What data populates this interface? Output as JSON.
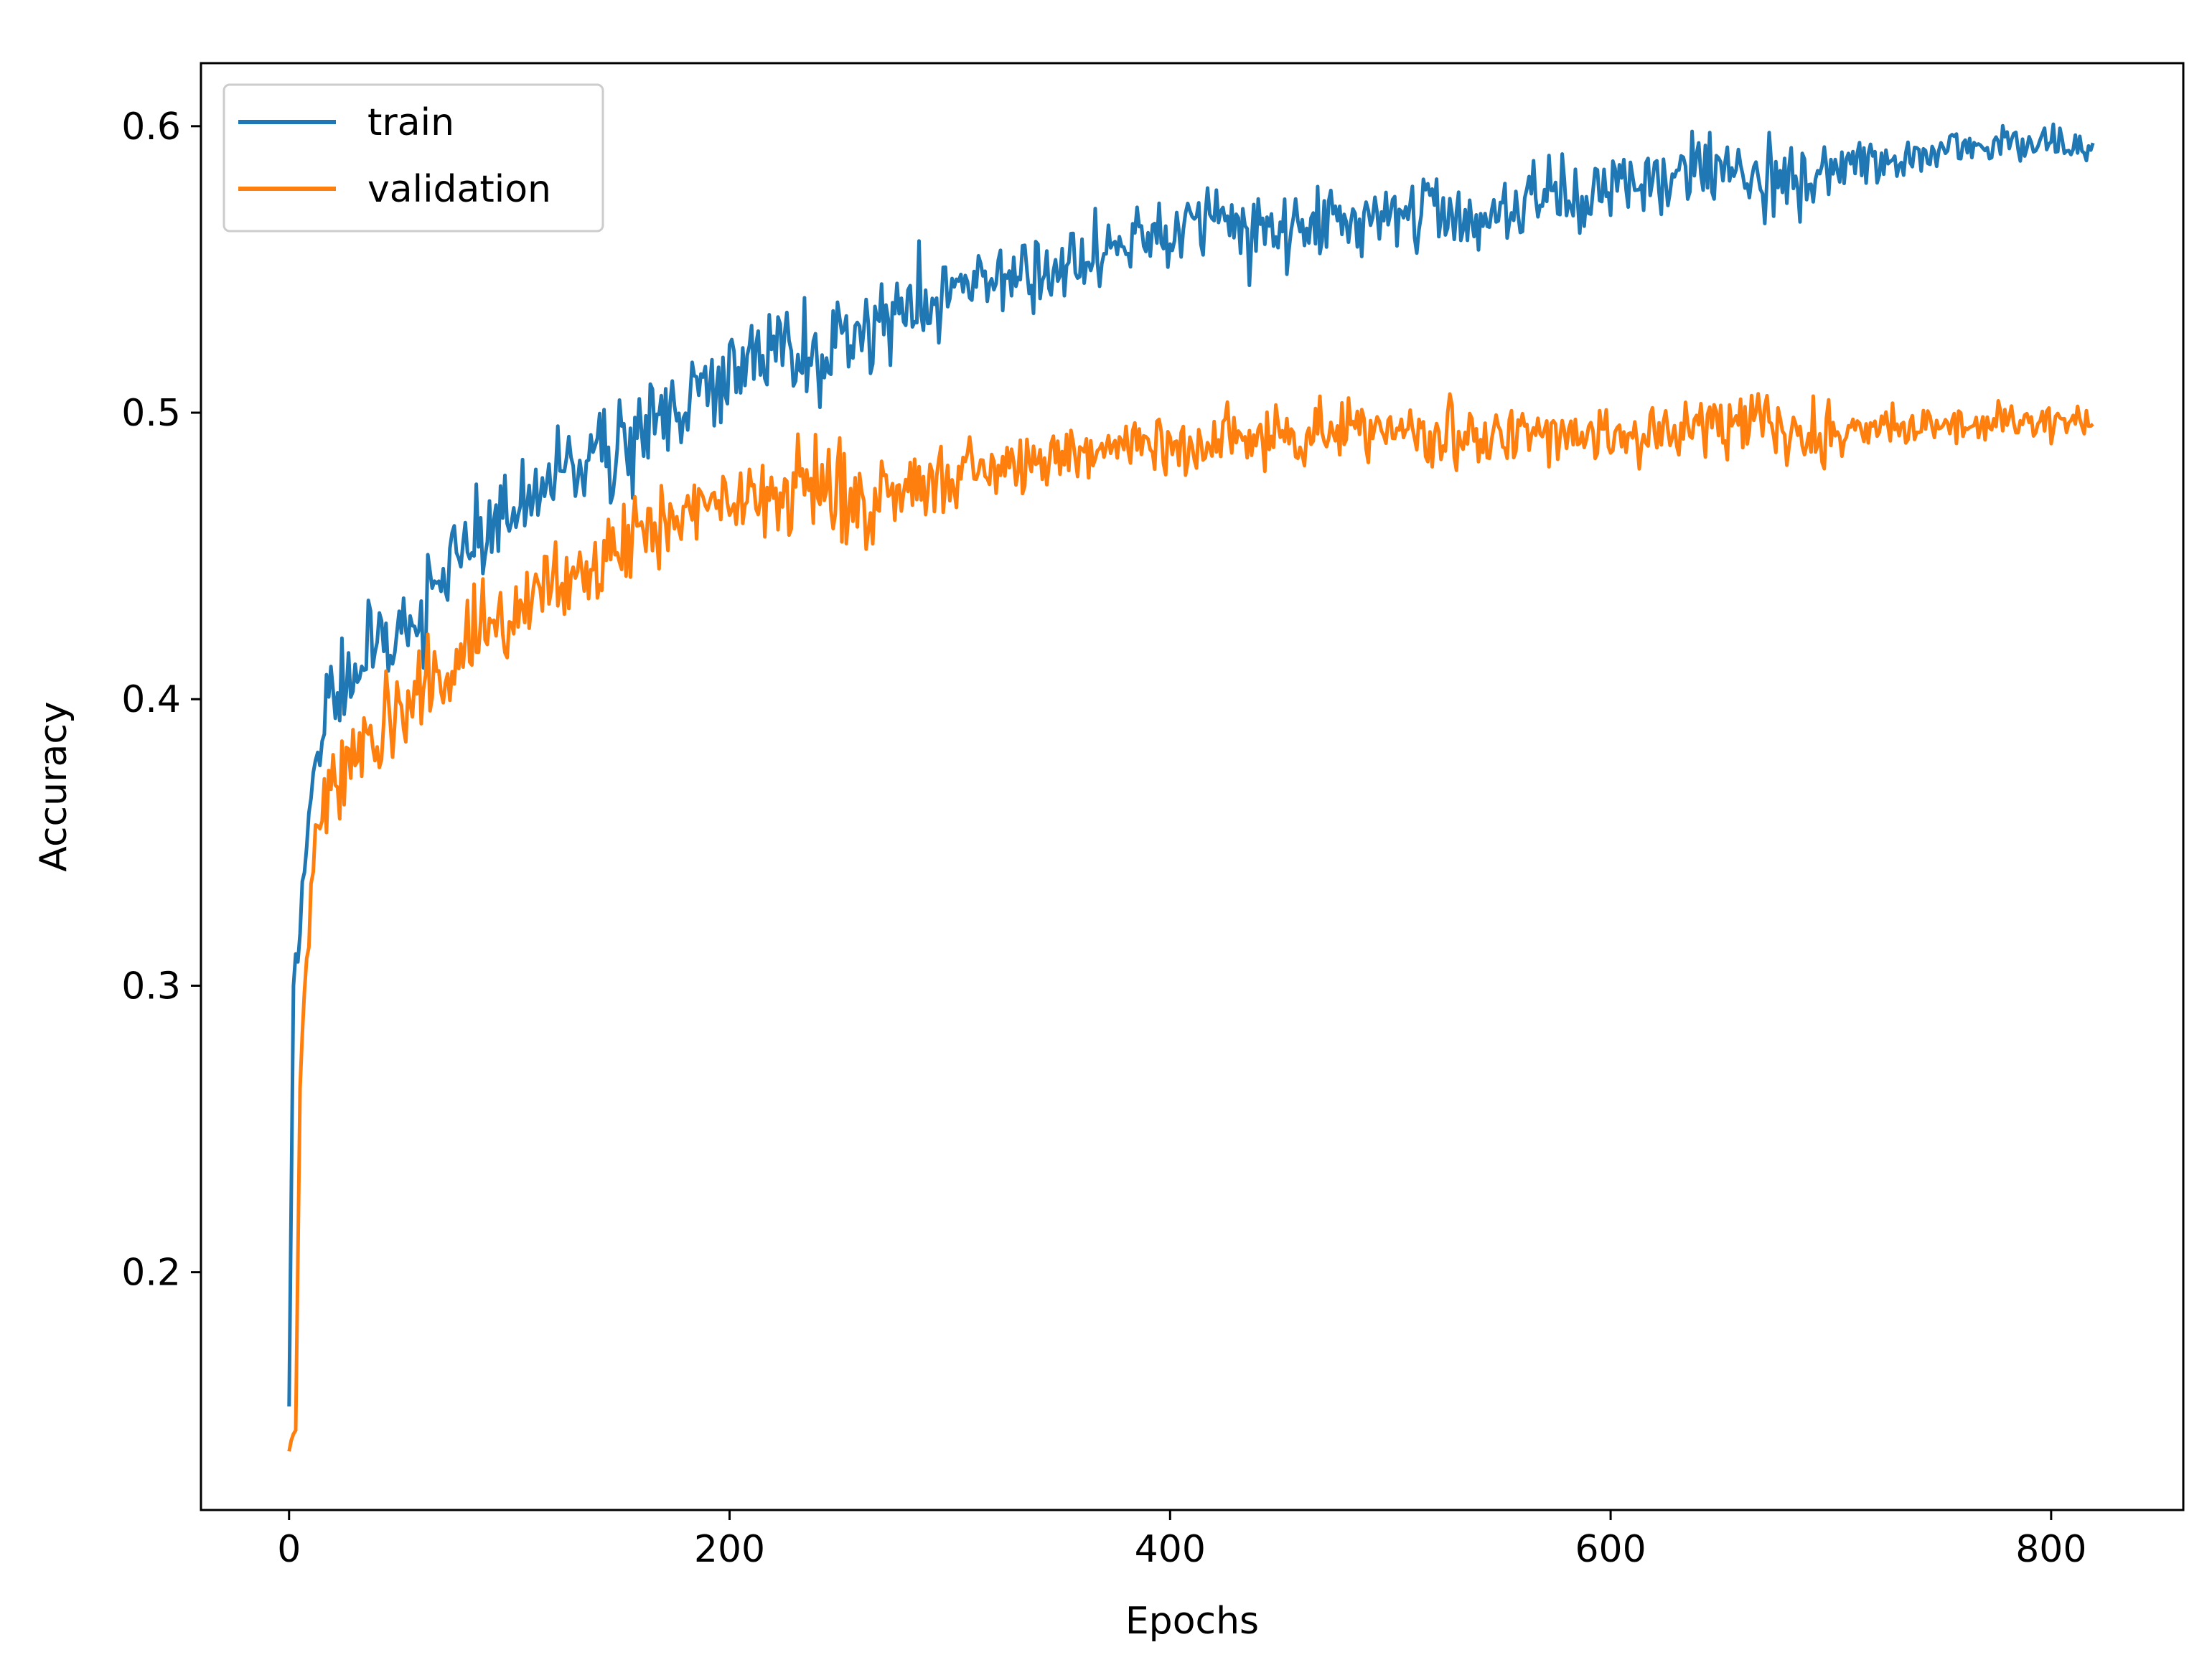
{
  "chart_data": {
    "type": "line",
    "title": "",
    "xlabel": "Epochs",
    "ylabel": "Accuracy",
    "xlim": [
      -40,
      860
    ],
    "ylim": [
      0.117,
      0.622
    ],
    "xticks": [
      0,
      200,
      400,
      600,
      800
    ],
    "xtick_labels": [
      "0",
      "200",
      "400",
      "600",
      "800"
    ],
    "yticks": [
      0.2,
      0.3,
      0.4,
      0.5,
      0.6
    ],
    "ytick_labels": [
      "0.2",
      "0.3",
      "0.4",
      "0.5",
      "0.6"
    ],
    "grid": false,
    "legend_position": "top-left",
    "n_epochs": 820,
    "series": [
      {
        "name": "train",
        "color": "#1f77b4",
        "x": [
          0,
          2,
          5,
          10,
          15,
          20,
          30,
          40,
          50,
          60,
          70,
          80,
          90,
          100,
          120,
          140,
          160,
          180,
          200,
          220,
          240,
          260,
          280,
          300,
          320,
          340,
          360,
          380,
          400,
          420,
          440,
          460,
          480,
          500,
          520,
          540,
          560,
          580,
          600,
          620,
          640,
          660,
          680,
          700,
          720,
          740,
          760,
          780,
          800,
          819
        ],
        "values": [
          0.148,
          0.3,
          0.32,
          0.37,
          0.39,
          0.4,
          0.41,
          0.42,
          0.425,
          0.43,
          0.445,
          0.45,
          0.455,
          0.465,
          0.475,
          0.485,
          0.495,
          0.505,
          0.515,
          0.522,
          0.52,
          0.525,
          0.535,
          0.545,
          0.545,
          0.55,
          0.555,
          0.56,
          0.563,
          0.565,
          0.562,
          0.565,
          0.568,
          0.57,
          0.572,
          0.565,
          0.572,
          0.575,
          0.578,
          0.582,
          0.585,
          0.585,
          0.582,
          0.585,
          0.587,
          0.59,
          0.592,
          0.594,
          0.593,
          0.592
        ]
      },
      {
        "name": "validation",
        "color": "#ff7f0e",
        "x": [
          0,
          3,
          5,
          8,
          12,
          20,
          30,
          40,
          50,
          60,
          70,
          80,
          90,
          100,
          120,
          140,
          160,
          180,
          200,
          220,
          240,
          260,
          280,
          300,
          320,
          340,
          360,
          380,
          400,
          420,
          440,
          460,
          480,
          500,
          520,
          540,
          560,
          580,
          600,
          620,
          640,
          660,
          680,
          700,
          720,
          740,
          760,
          780,
          800,
          819
        ],
        "values": [
          0.14,
          0.145,
          0.26,
          0.31,
          0.35,
          0.37,
          0.38,
          0.39,
          0.395,
          0.405,
          0.412,
          0.418,
          0.425,
          0.43,
          0.44,
          0.452,
          0.46,
          0.465,
          0.47,
          0.475,
          0.473,
          0.468,
          0.475,
          0.478,
          0.482,
          0.482,
          0.485,
          0.488,
          0.49,
          0.49,
          0.49,
          0.492,
          0.495,
          0.493,
          0.492,
          0.49,
          0.492,
          0.492,
          0.49,
          0.495,
          0.494,
          0.495,
          0.495,
          0.492,
          0.494,
          0.495,
          0.496,
          0.497,
          0.497,
          0.497
        ]
      }
    ]
  }
}
